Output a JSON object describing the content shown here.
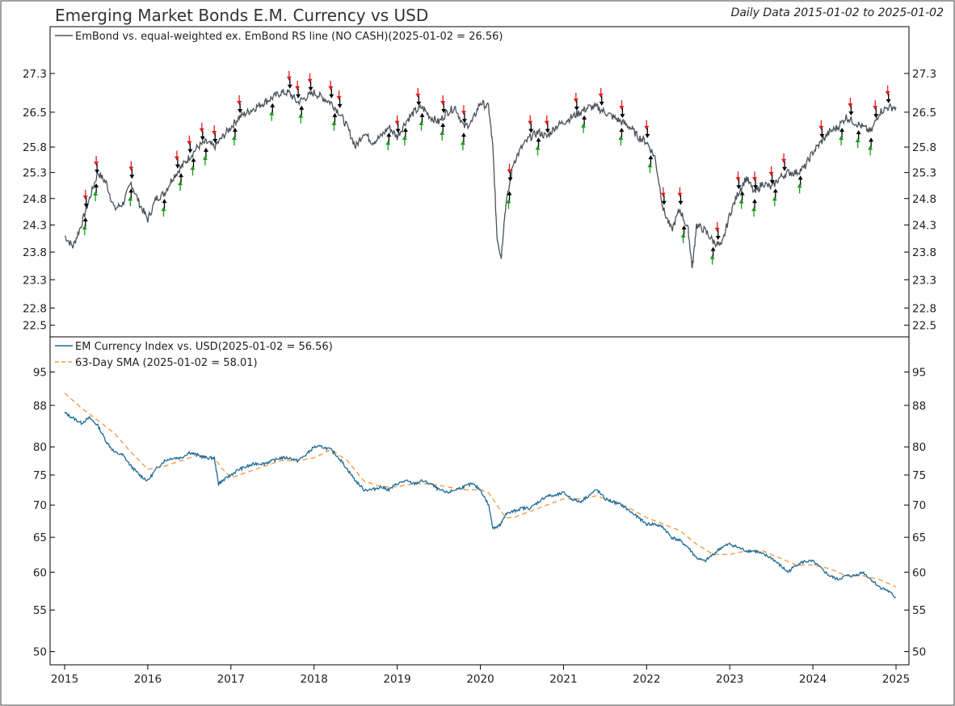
{
  "header": {
    "title": "Emerging Market Bonds E.M. Currency vs USD",
    "subtitle": "Daily Data 2015-01-02 to 2025-01-02"
  },
  "colors": {
    "rs_line": "#4a5259",
    "em_currency": "#1f6b96",
    "sma": "#f39c4a",
    "arrow_up": "#1a9a1a",
    "arrow_down": "#e01b1b",
    "arrow_black": "#000000",
    "frame": "#000000"
  },
  "x_axis": {
    "ticks": [
      "2015",
      "2016",
      "2017",
      "2018",
      "2019",
      "2020",
      "2021",
      "2022",
      "2023",
      "2024",
      "2025"
    ]
  },
  "chart_data": [
    {
      "type": "line",
      "legend": [
        "EmBond vs. equal-weighted ex. EmBond RS line (NO CASH)(2025-01-02 = 26.56)"
      ],
      "yscale": "log",
      "ylim": [
        22.3,
        28.3
      ],
      "yticks": [
        "27.3",
        "26.5",
        "25.8",
        "25.3",
        "24.8",
        "24.3",
        "23.8",
        "23.3",
        "22.8",
        "22.5"
      ],
      "series": [
        {
          "x": [
            2015.0,
            2015.1,
            2015.2,
            2015.3,
            2015.4,
            2015.5,
            2015.6,
            2015.7,
            2015.8,
            2015.9,
            2016.0,
            2016.1,
            2016.2,
            2016.3,
            2016.4,
            2016.5,
            2016.6,
            2016.7,
            2016.8,
            2016.9,
            2017.0,
            2017.1,
            2017.2,
            2017.3,
            2017.4,
            2017.5,
            2017.6,
            2017.7,
            2017.8,
            2017.9,
            2018.0,
            2018.1,
            2018.2,
            2018.3,
            2018.4,
            2018.5,
            2018.6,
            2018.7,
            2018.8,
            2018.9,
            2019.0,
            2019.1,
            2019.2,
            2019.3,
            2019.4,
            2019.5,
            2019.6,
            2019.7,
            2019.8,
            2019.9,
            2020.0,
            2020.1,
            2020.15,
            2020.2,
            2020.25,
            2020.3,
            2020.4,
            2020.5,
            2020.6,
            2020.7,
            2020.8,
            2020.9,
            2021.0,
            2021.1,
            2021.2,
            2021.3,
            2021.4,
            2021.5,
            2021.6,
            2021.7,
            2021.8,
            2021.9,
            2022.0,
            2022.1,
            2022.2,
            2022.3,
            2022.4,
            2022.5,
            2022.55,
            2022.6,
            2022.7,
            2022.8,
            2022.9,
            2023.0,
            2023.1,
            2023.2,
            2023.3,
            2023.4,
            2023.5,
            2023.6,
            2023.7,
            2023.8,
            2023.9,
            2024.0,
            2024.1,
            2024.2,
            2024.3,
            2024.4,
            2024.5,
            2024.6,
            2024.7,
            2024.8,
            2024.9,
            2025.0
          ],
          "y": [
            24.1,
            23.9,
            24.3,
            24.8,
            25.3,
            25.1,
            24.6,
            24.7,
            25.1,
            24.7,
            24.4,
            24.8,
            24.9,
            25.2,
            25.4,
            25.6,
            25.8,
            25.9,
            25.8,
            26.0,
            26.2,
            26.4,
            26.5,
            26.6,
            26.7,
            26.8,
            26.9,
            26.9,
            26.7,
            26.8,
            26.9,
            26.8,
            26.7,
            26.5,
            26.2,
            25.8,
            26.1,
            25.9,
            26.0,
            26.2,
            26.0,
            26.3,
            26.5,
            26.6,
            26.4,
            26.3,
            26.5,
            26.6,
            26.2,
            26.3,
            26.7,
            26.6,
            25.8,
            24.1,
            23.7,
            24.6,
            25.5,
            25.8,
            26.0,
            26.1,
            26.0,
            26.2,
            26.3,
            26.4,
            26.5,
            26.6,
            26.6,
            26.5,
            26.4,
            26.3,
            26.2,
            26.0,
            25.9,
            25.6,
            24.6,
            24.2,
            24.6,
            24.2,
            23.5,
            24.3,
            24.2,
            24.0,
            23.9,
            24.5,
            24.9,
            25.2,
            24.9,
            25.1,
            25.0,
            25.2,
            25.3,
            25.3,
            25.4,
            25.7,
            25.9,
            26.1,
            26.2,
            26.4,
            26.3,
            26.2,
            26.1,
            26.5,
            26.6,
            26.6
          ]
        }
      ]
    },
    {
      "type": "line",
      "legend": [
        "EM Currency Index vs. USD(2025-01-02 = 56.56)",
        "63-Day SMA (2025-01-02 = 58.01)"
      ],
      "yscale": "log",
      "ylim": [
        48.5,
        103
      ],
      "yticks": [
        "95",
        "88",
        "80",
        "75",
        "70",
        "65",
        "60",
        "55",
        "50"
      ],
      "series": [
        {
          "x": [
            2015.0,
            2015.1,
            2015.2,
            2015.3,
            2015.4,
            2015.5,
            2015.6,
            2015.7,
            2015.8,
            2015.9,
            2016.0,
            2016.1,
            2016.2,
            2016.3,
            2016.4,
            2016.5,
            2016.6,
            2016.7,
            2016.8,
            2016.85,
            2016.9,
            2017.0,
            2017.1,
            2017.2,
            2017.3,
            2017.4,
            2017.5,
            2017.6,
            2017.7,
            2017.8,
            2017.9,
            2018.0,
            2018.1,
            2018.2,
            2018.3,
            2018.4,
            2018.5,
            2018.6,
            2018.7,
            2018.8,
            2018.9,
            2019.0,
            2019.1,
            2019.2,
            2019.3,
            2019.4,
            2019.5,
            2019.6,
            2019.7,
            2019.8,
            2019.9,
            2020.0,
            2020.1,
            2020.15,
            2020.2,
            2020.25,
            2020.3,
            2020.4,
            2020.5,
            2020.6,
            2020.7,
            2020.8,
            2020.9,
            2021.0,
            2021.1,
            2021.2,
            2021.3,
            2021.4,
            2021.5,
            2021.6,
            2021.7,
            2021.8,
            2021.9,
            2022.0,
            2022.1,
            2022.2,
            2022.3,
            2022.4,
            2022.5,
            2022.6,
            2022.7,
            2022.8,
            2022.9,
            2023.0,
            2023.1,
            2023.2,
            2023.3,
            2023.4,
            2023.5,
            2023.6,
            2023.7,
            2023.8,
            2023.9,
            2024.0,
            2024.1,
            2024.2,
            2024.3,
            2024.4,
            2024.5,
            2024.6,
            2024.7,
            2024.8,
            2024.9,
            2025.0
          ],
          "y": [
            86.5,
            85.5,
            84.5,
            85.5,
            84.0,
            81.0,
            79.0,
            78.5,
            76.5,
            75.0,
            74.0,
            76.0,
            77.5,
            78.0,
            78.0,
            79.0,
            78.5,
            78.0,
            78.0,
            73.5,
            74.0,
            75.0,
            76.0,
            76.5,
            77.0,
            77.0,
            77.5,
            78.0,
            78.0,
            77.5,
            78.5,
            80.0,
            80.0,
            79.5,
            78.0,
            76.0,
            74.0,
            72.5,
            72.5,
            73.0,
            72.5,
            73.5,
            74.0,
            73.5,
            74.0,
            73.5,
            72.5,
            72.0,
            72.5,
            73.0,
            73.5,
            72.5,
            70.0,
            66.5,
            66.5,
            67.0,
            68.5,
            69.0,
            69.5,
            69.5,
            70.5,
            71.5,
            71.5,
            72.0,
            71.0,
            70.5,
            71.5,
            72.5,
            71.0,
            70.5,
            70.0,
            69.0,
            68.0,
            67.0,
            67.0,
            66.5,
            65.0,
            64.5,
            63.5,
            62.0,
            61.5,
            62.5,
            63.5,
            64.0,
            63.5,
            63.0,
            63.0,
            62.5,
            62.0,
            61.0,
            60.0,
            61.0,
            61.5,
            61.5,
            60.5,
            59.5,
            59.0,
            59.5,
            59.5,
            60.0,
            59.0,
            58.0,
            57.5,
            56.56
          ]
        },
        {
          "x": [
            2015.0,
            2015.2,
            2015.4,
            2015.6,
            2015.8,
            2016.0,
            2016.2,
            2016.4,
            2016.6,
            2016.8,
            2016.9,
            2017.0,
            2017.2,
            2017.4,
            2017.6,
            2017.8,
            2018.0,
            2018.2,
            2018.4,
            2018.6,
            2018.8,
            2019.0,
            2019.2,
            2019.4,
            2019.6,
            2019.8,
            2020.0,
            2020.1,
            2020.2,
            2020.3,
            2020.4,
            2020.6,
            2020.8,
            2021.0,
            2021.2,
            2021.4,
            2021.6,
            2021.8,
            2022.0,
            2022.2,
            2022.4,
            2022.6,
            2022.8,
            2023.0,
            2023.2,
            2023.4,
            2023.6,
            2023.8,
            2024.0,
            2024.2,
            2024.4,
            2024.6,
            2024.8,
            2025.0
          ],
          "y": [
            90.5,
            87.5,
            85.0,
            82.5,
            79.0,
            76.0,
            76.5,
            77.5,
            78.5,
            78.0,
            76.0,
            74.5,
            75.5,
            76.5,
            77.5,
            77.5,
            78.0,
            79.5,
            77.5,
            74.0,
            73.0,
            73.0,
            73.5,
            73.5,
            73.0,
            72.5,
            72.5,
            72.0,
            70.0,
            68.0,
            68.0,
            69.0,
            70.0,
            71.0,
            71.0,
            71.5,
            70.5,
            69.5,
            68.0,
            67.0,
            66.0,
            64.0,
            62.5,
            62.5,
            63.0,
            63.0,
            62.0,
            61.0,
            61.0,
            60.5,
            59.5,
            59.5,
            59.0,
            58.01
          ]
        }
      ]
    }
  ]
}
